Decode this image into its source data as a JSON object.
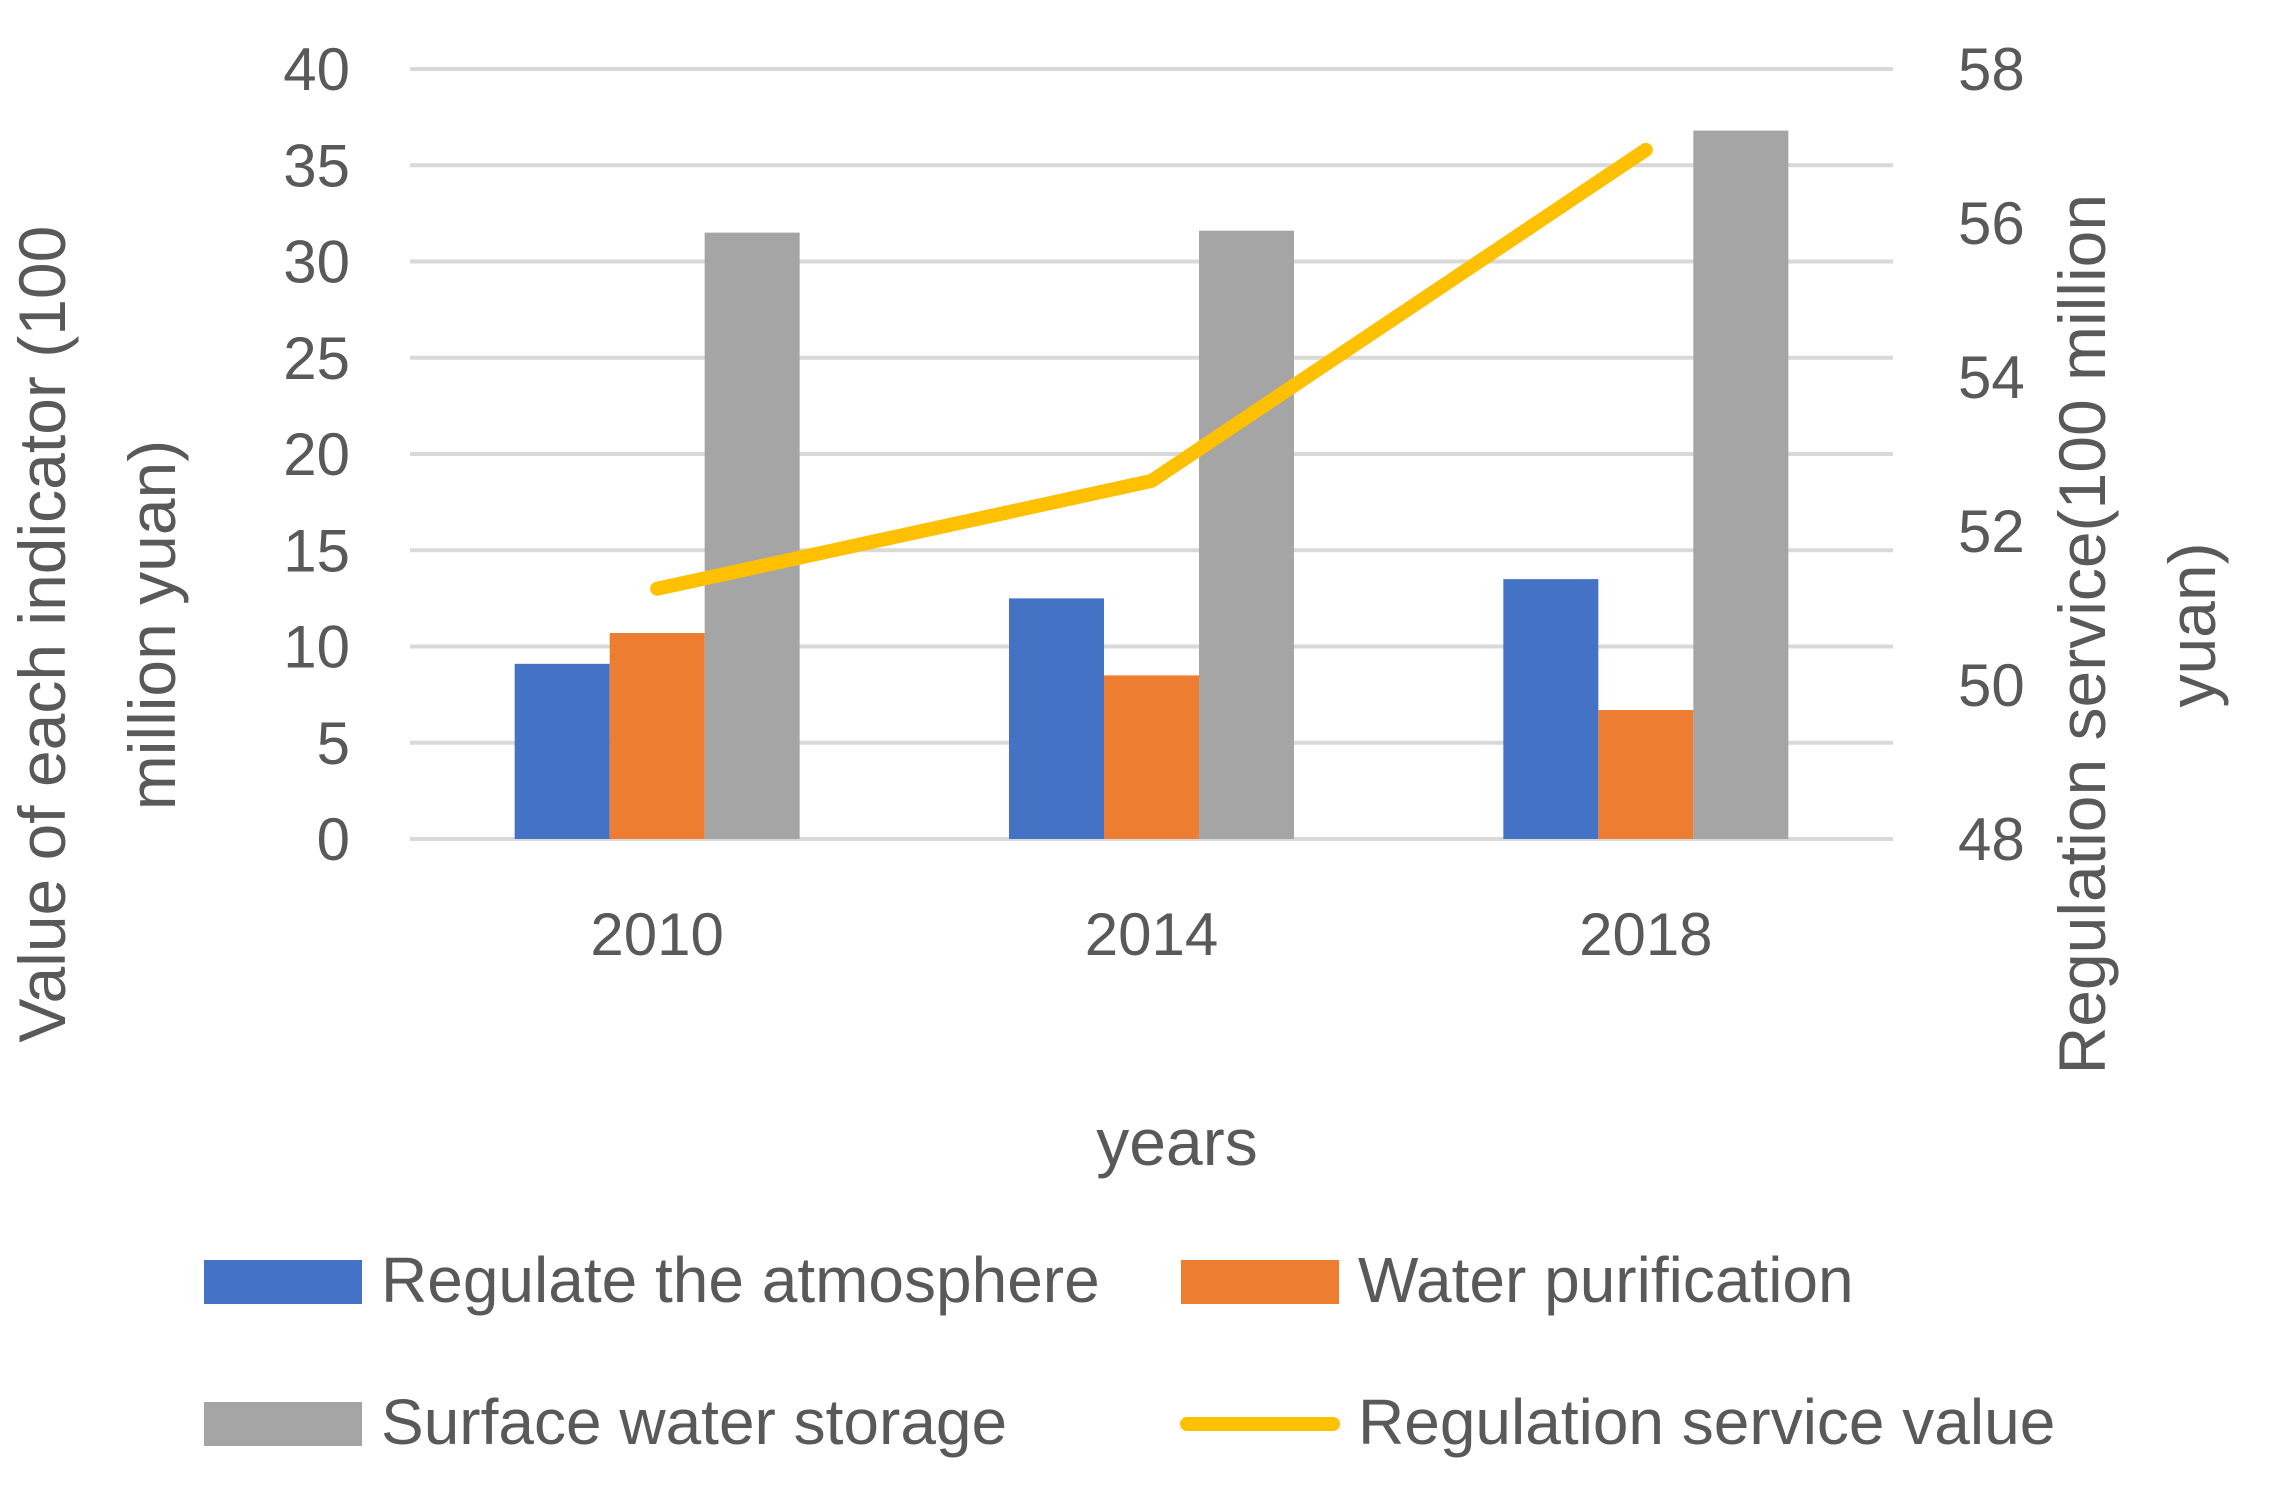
{
  "chart_data": {
    "type": "bar+line",
    "categories": [
      "2010",
      "2014",
      "2018"
    ],
    "xlabel": "years",
    "ylabel": "Value of each indicator (100 million yuan)",
    "ylabel_lines": [
      "Value of each indicator (100",
      "million yuan)"
    ],
    "y2label": "Regulation service(100 million yuan)",
    "y2label_lines": [
      "Regulation service(100 million",
      "yuan)"
    ],
    "ylim": [
      0,
      40
    ],
    "yticks": [
      "0",
      "5",
      "10",
      "15",
      "20",
      "25",
      "30",
      "35",
      "40"
    ],
    "y2lim": [
      48,
      58
    ],
    "y2ticks": [
      "48",
      "50",
      "52",
      "54",
      "56",
      "58"
    ],
    "grid": true,
    "legend_position": "bottom",
    "series": [
      {
        "name": "Regulate the atmosphere",
        "type": "bar",
        "axis": "left",
        "color": "#4472C4",
        "values": [
          9.1,
          12.5,
          13.5
        ]
      },
      {
        "name": "Water purification",
        "type": "bar",
        "axis": "left",
        "color": "#ED7D31",
        "values": [
          10.7,
          8.5,
          6.7
        ]
      },
      {
        "name": "Surface water storage",
        "type": "bar",
        "axis": "left",
        "color": "#A5A5A5",
        "values": [
          31.5,
          31.6,
          36.8
        ]
      },
      {
        "name": "Regulation service value",
        "type": "line",
        "axis": "right",
        "color": "#FFC000",
        "values": [
          51.25,
          52.65,
          56.95
        ]
      }
    ]
  }
}
